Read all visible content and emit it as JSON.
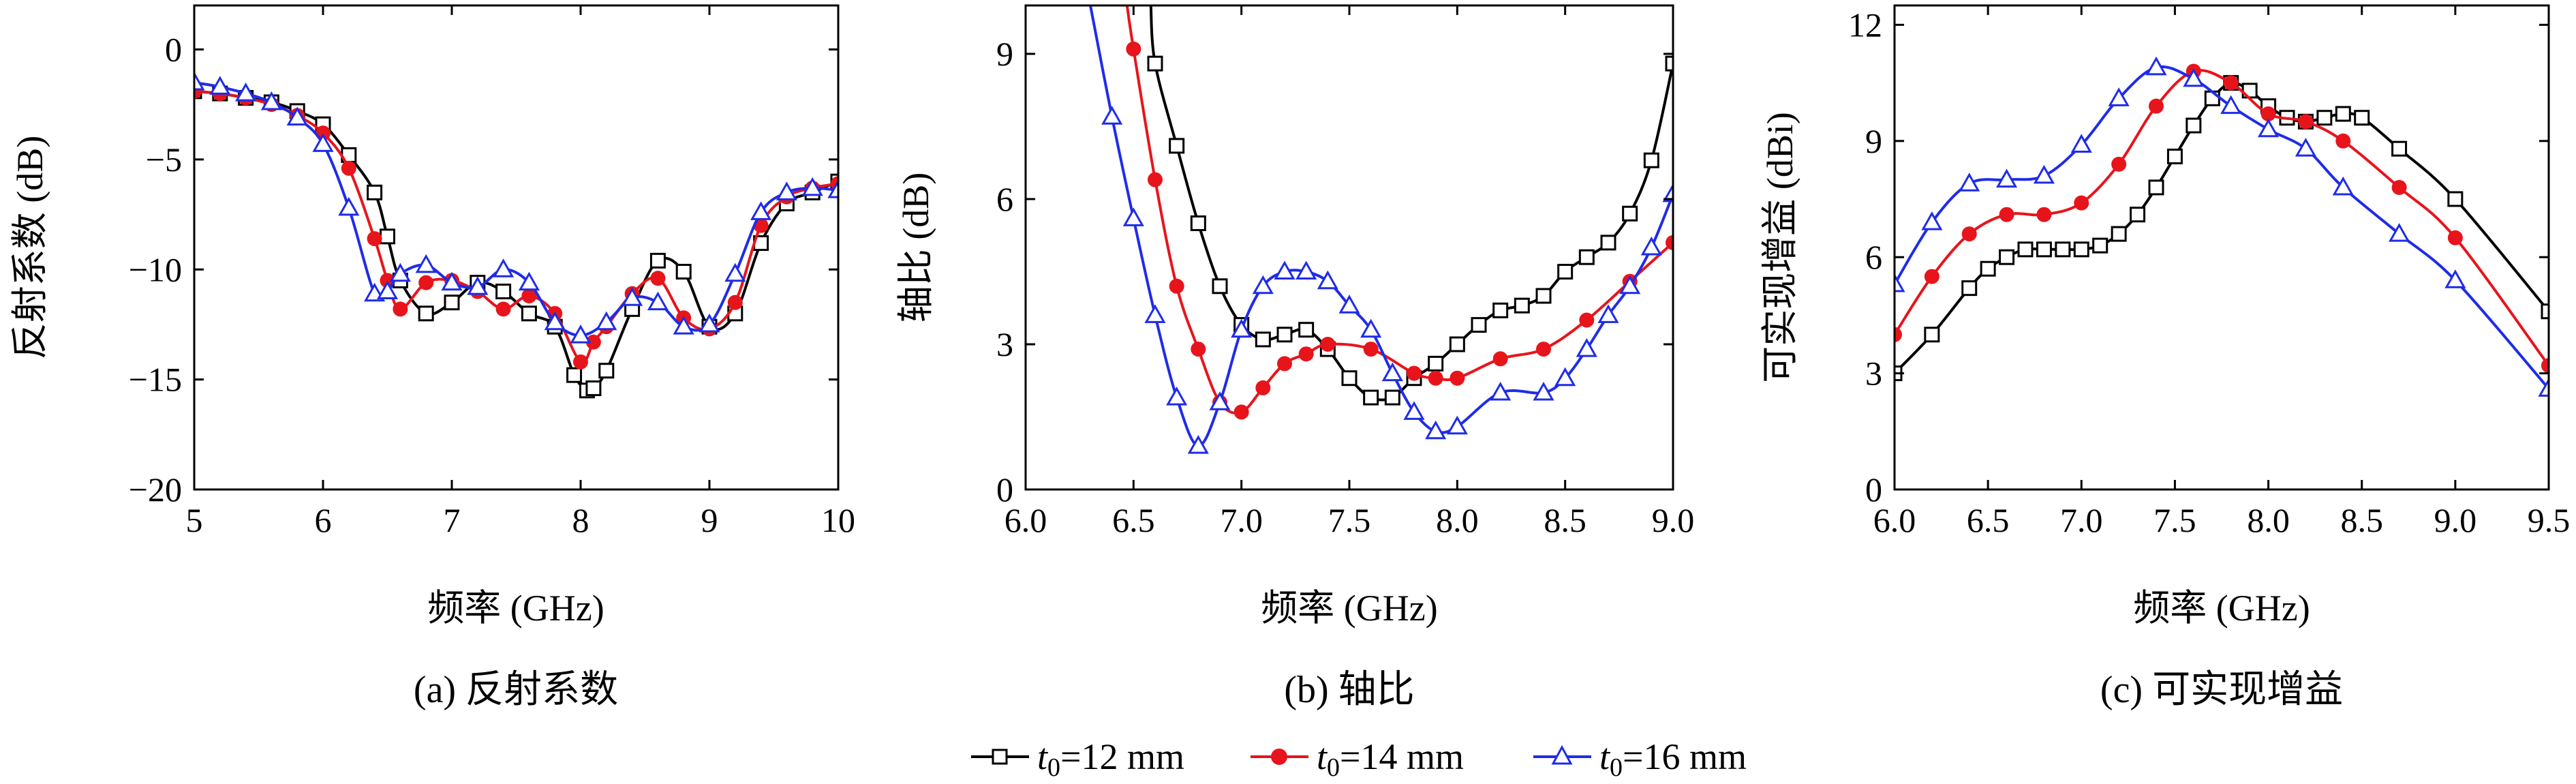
{
  "colors": {
    "s12": "#000000",
    "s14": "#e8141b",
    "s16": "#1f2ce8"
  },
  "legend": {
    "items": [
      {
        "var": "t",
        "sub": "0",
        "rest": "=12 mm",
        "marker": "square",
        "color": "#000000"
      },
      {
        "var": "t",
        "sub": "0",
        "rest": "=14 mm",
        "marker": "circle",
        "color": "#e8141b"
      },
      {
        "var": "t",
        "sub": "0",
        "rest": "=16 mm",
        "marker": "triangle",
        "color": "#1f2ce8"
      }
    ]
  },
  "chart_data": [
    {
      "type": "line",
      "caption": "(a) 反射系数",
      "xlabel": "频率 (GHz)",
      "ylabel": "反射系数 (dB)",
      "xlim": [
        5,
        10
      ],
      "ylim": [
        -20,
        2
      ],
      "xticks": [
        5,
        6,
        7,
        8,
        9,
        10
      ],
      "xtick_labels": [
        "5",
        "6",
        "7",
        "8",
        "9",
        "10"
      ],
      "yticks": [
        -20,
        -15,
        -10,
        -5,
        0
      ],
      "ytick_labels": [
        "−20",
        "−15",
        "−10",
        "−5",
        "0"
      ],
      "series": [
        {
          "id": "s12",
          "marker": "square",
          "x": [
            5.0,
            5.2,
            5.4,
            5.6,
            5.8,
            6.0,
            6.2,
            6.4,
            6.5,
            6.6,
            6.8,
            7.0,
            7.2,
            7.4,
            7.6,
            7.8,
            7.95,
            8.05,
            8.1,
            8.2,
            8.4,
            8.6,
            8.8,
            9.0,
            9.2,
            9.4,
            9.6,
            9.8,
            10.0
          ],
          "y": [
            -1.9,
            -2.0,
            -2.2,
            -2.4,
            -2.8,
            -3.4,
            -4.8,
            -6.5,
            -8.5,
            -10.5,
            -12.0,
            -11.5,
            -10.6,
            -11.0,
            -12.0,
            -12.6,
            -14.8,
            -15.5,
            -15.4,
            -14.6,
            -11.8,
            -9.6,
            -10.1,
            -12.6,
            -12.0,
            -8.8,
            -7.0,
            -6.5,
            -6.0
          ]
        },
        {
          "id": "s14",
          "marker": "circle",
          "x": [
            5.0,
            5.2,
            5.4,
            5.6,
            5.8,
            6.0,
            6.2,
            6.4,
            6.5,
            6.6,
            6.8,
            7.0,
            7.2,
            7.4,
            7.6,
            7.8,
            8.0,
            8.1,
            8.2,
            8.4,
            8.6,
            8.8,
            9.0,
            9.2,
            9.4,
            9.6,
            9.8,
            10.0
          ],
          "y": [
            -1.9,
            -2.0,
            -2.2,
            -2.5,
            -3.0,
            -3.8,
            -5.4,
            -8.6,
            -10.5,
            -11.8,
            -10.6,
            -10.5,
            -11.0,
            -11.8,
            -11.2,
            -12.0,
            -14.2,
            -13.3,
            -12.6,
            -11.1,
            -10.4,
            -12.2,
            -12.7,
            -11.5,
            -8.0,
            -6.7,
            -6.3,
            -6.1
          ]
        },
        {
          "id": "s16",
          "marker": "triangle",
          "x": [
            5.0,
            5.2,
            5.4,
            5.6,
            5.8,
            6.0,
            6.2,
            6.4,
            6.5,
            6.6,
            6.8,
            7.0,
            7.2,
            7.4,
            7.6,
            7.8,
            8.0,
            8.2,
            8.4,
            8.6,
            8.8,
            9.0,
            9.2,
            9.4,
            9.6,
            9.8,
            10.0
          ],
          "y": [
            -1.5,
            -1.7,
            -2.0,
            -2.4,
            -3.1,
            -4.3,
            -7.2,
            -11.1,
            -11.0,
            -10.2,
            -9.8,
            -10.6,
            -10.8,
            -10.0,
            -10.6,
            -12.4,
            -13.0,
            -12.4,
            -11.3,
            -11.5,
            -12.6,
            -12.5,
            -10.2,
            -7.4,
            -6.5,
            -6.3,
            -6.4
          ]
        }
      ]
    },
    {
      "type": "line",
      "caption": "(b) 轴比",
      "xlabel": "频率 (GHz)",
      "ylabel": "轴比 (dB)",
      "xlim": [
        6.0,
        9.0
      ],
      "ylim": [
        0,
        10
      ],
      "xticks": [
        6.0,
        6.5,
        7.0,
        7.5,
        8.0,
        8.5,
        9.0
      ],
      "xtick_labels": [
        "6.0",
        "6.5",
        "7.0",
        "7.5",
        "8.0",
        "8.5",
        "9.0"
      ],
      "yticks": [
        0,
        3,
        6,
        9
      ],
      "ytick_labels": [
        "0",
        "3",
        "6",
        "9"
      ],
      "series": [
        {
          "id": "s12",
          "marker": "square",
          "x": [
            6.58,
            6.6,
            6.7,
            6.8,
            6.9,
            7.0,
            7.1,
            7.2,
            7.3,
            7.4,
            7.5,
            7.6,
            7.7,
            7.8,
            7.9,
            8.0,
            8.1,
            8.2,
            8.3,
            8.4,
            8.5,
            8.6,
            8.7,
            8.8,
            8.9,
            9.0
          ],
          "y": [
            10.0,
            8.8,
            7.1,
            5.5,
            4.2,
            3.4,
            3.1,
            3.2,
            3.3,
            2.9,
            2.3,
            1.9,
            1.9,
            2.3,
            2.6,
            3.0,
            3.4,
            3.7,
            3.8,
            4.0,
            4.5,
            4.8,
            5.1,
            5.7,
            6.8,
            8.8
          ]
        },
        {
          "id": "s14",
          "marker": "circle",
          "x": [
            6.47,
            6.5,
            6.6,
            6.7,
            6.8,
            6.9,
            7.0,
            7.1,
            7.2,
            7.3,
            7.4,
            7.6,
            7.8,
            7.9,
            8.0,
            8.2,
            8.4,
            8.6,
            8.8,
            9.0
          ],
          "y": [
            10.0,
            9.1,
            6.4,
            4.2,
            2.9,
            1.8,
            1.6,
            2.1,
            2.6,
            2.8,
            3.0,
            2.9,
            2.4,
            2.3,
            2.3,
            2.7,
            2.9,
            3.5,
            4.3,
            5.1
          ]
        },
        {
          "id": "s16",
          "marker": "triangle",
          "x": [
            6.3,
            6.4,
            6.5,
            6.6,
            6.7,
            6.8,
            6.9,
            7.0,
            7.1,
            7.2,
            7.3,
            7.4,
            7.5,
            7.6,
            7.7,
            7.8,
            7.9,
            8.0,
            8.2,
            8.4,
            8.5,
            8.6,
            8.7,
            8.8,
            8.9,
            9.0
          ],
          "y": [
            10.0,
            7.7,
            5.6,
            3.6,
            1.9,
            0.9,
            1.8,
            3.3,
            4.2,
            4.5,
            4.5,
            4.3,
            3.8,
            3.3,
            2.4,
            1.6,
            1.2,
            1.3,
            2.0,
            2.0,
            2.3,
            2.9,
            3.6,
            4.2,
            5.0,
            6.1
          ]
        }
      ]
    },
    {
      "type": "line",
      "caption": "(c) 可实现增益",
      "xlabel": "频率 (GHz)",
      "ylabel": "可实现增益 (dBi)",
      "xlim": [
        6.0,
        9.5
      ],
      "ylim": [
        0,
        12.5
      ],
      "xticks": [
        6.0,
        6.5,
        7.0,
        7.5,
        8.0,
        8.5,
        9.0,
        9.5
      ],
      "xtick_labels": [
        "6.0",
        "6.5",
        "7.0",
        "7.5",
        "8.0",
        "8.5",
        "9.0",
        "9.5"
      ],
      "yticks": [
        0,
        3,
        6,
        9,
        12
      ],
      "ytick_labels": [
        "0",
        "3",
        "6",
        "9",
        "12"
      ],
      "series": [
        {
          "id": "s12",
          "marker": "square",
          "x": [
            6.0,
            6.2,
            6.4,
            6.5,
            6.6,
            6.7,
            6.8,
            6.9,
            7.0,
            7.1,
            7.2,
            7.3,
            7.4,
            7.5,
            7.6,
            7.7,
            7.8,
            7.9,
            8.0,
            8.1,
            8.2,
            8.3,
            8.4,
            8.5,
            8.7,
            9.0,
            9.5
          ],
          "y": [
            3.0,
            4.0,
            5.2,
            5.7,
            6.0,
            6.2,
            6.2,
            6.2,
            6.2,
            6.3,
            6.6,
            7.1,
            7.8,
            8.6,
            9.4,
            10.1,
            10.5,
            10.3,
            9.9,
            9.6,
            9.5,
            9.6,
            9.7,
            9.6,
            8.8,
            7.5,
            4.6
          ]
        },
        {
          "id": "s14",
          "marker": "circle",
          "x": [
            6.0,
            6.2,
            6.4,
            6.6,
            6.8,
            7.0,
            7.2,
            7.4,
            7.6,
            7.8,
            8.0,
            8.2,
            8.4,
            8.7,
            9.0,
            9.5
          ],
          "y": [
            4.0,
            5.5,
            6.6,
            7.1,
            7.1,
            7.4,
            8.4,
            9.9,
            10.8,
            10.5,
            9.7,
            9.5,
            9.0,
            7.8,
            6.5,
            3.2
          ]
        },
        {
          "id": "s16",
          "marker": "triangle",
          "x": [
            6.0,
            6.2,
            6.4,
            6.6,
            6.8,
            7.0,
            7.2,
            7.4,
            7.6,
            7.8,
            8.0,
            8.2,
            8.4,
            8.7,
            9.0,
            9.5
          ],
          "y": [
            5.3,
            6.9,
            7.9,
            8.0,
            8.1,
            8.9,
            10.1,
            10.9,
            10.6,
            9.9,
            9.3,
            8.8,
            7.8,
            6.6,
            5.4,
            2.6
          ]
        }
      ]
    }
  ]
}
